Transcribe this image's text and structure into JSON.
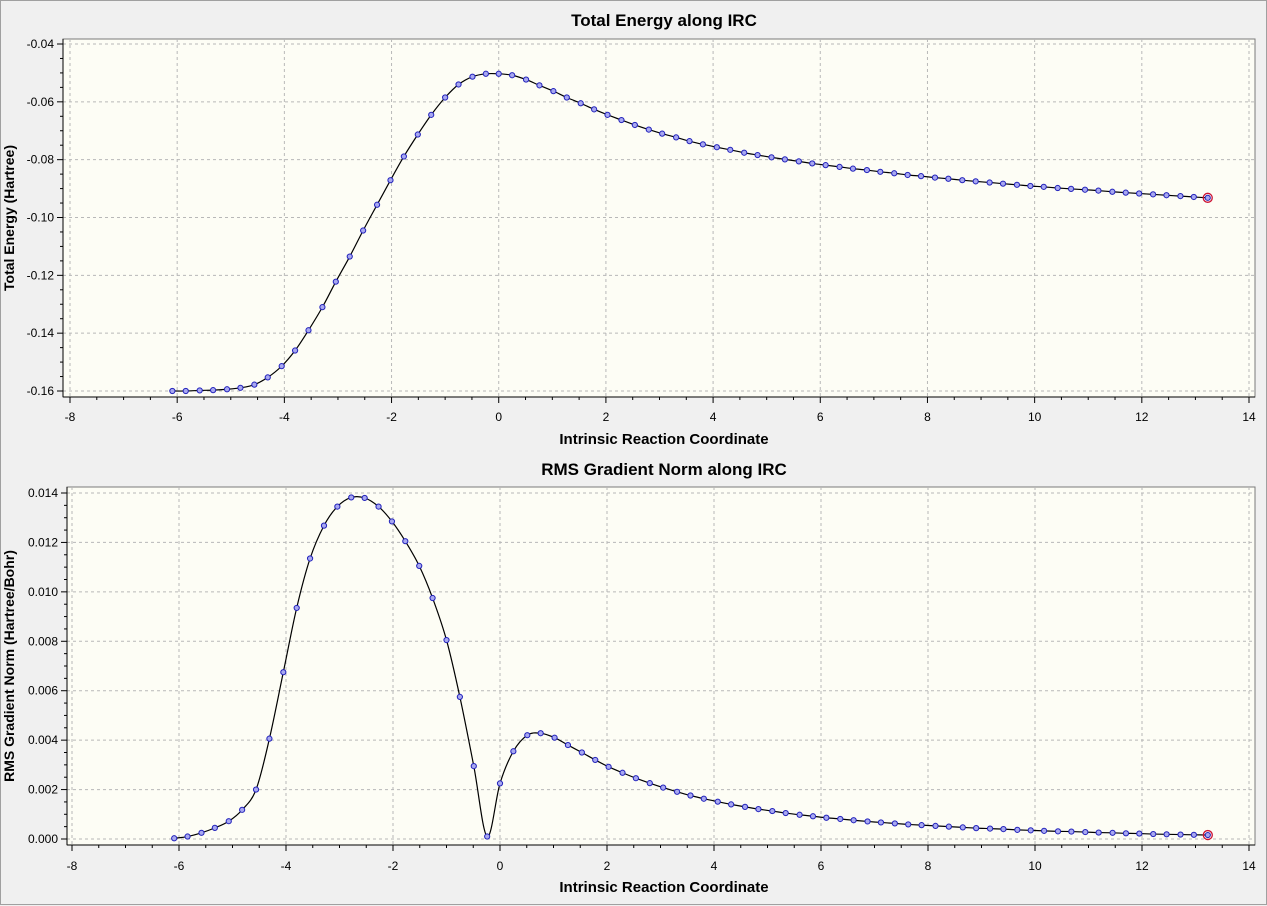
{
  "chart_data": [
    {
      "type": "line",
      "title": "Total Energy along IRC",
      "xlabel": "Intrinsic Reaction Coordinate",
      "ylabel": "Total Energy (Hartree)",
      "xlim": [
        -8,
        14
      ],
      "ylim": [
        -0.16,
        -0.04
      ],
      "xticks": [
        -8,
        -6,
        -4,
        -2,
        0,
        2,
        4,
        6,
        8,
        10,
        12,
        14
      ],
      "xtick_labels": [
        "-8",
        "-6",
        "-4",
        "-2",
        "0",
        "2",
        "4",
        "6",
        "8",
        "10",
        "12",
        "14"
      ],
      "yticks": [
        -0.04,
        -0.06,
        -0.08,
        -0.1,
        -0.12,
        -0.14,
        -0.16
      ],
      "ytick_labels": [
        "-0.04",
        "-0.06",
        "-0.08",
        "-0.10",
        "-0.12",
        "-0.14",
        "-0.16"
      ],
      "grid": true,
      "x": [
        -6.09,
        -5.84,
        -5.58,
        -5.33,
        -5.07,
        -4.82,
        -4.56,
        -4.31,
        -4.05,
        -3.8,
        -3.55,
        -3.29,
        -3.04,
        -2.78,
        -2.53,
        -2.27,
        -2.02,
        -1.77,
        -1.51,
        -1.26,
        -1.0,
        -0.75,
        -0.49,
        -0.24,
        0.0,
        0.25,
        0.51,
        0.76,
        1.02,
        1.27,
        1.53,
        1.78,
        2.03,
        2.29,
        2.54,
        2.8,
        3.05,
        3.31,
        3.56,
        3.81,
        4.07,
        4.32,
        4.58,
        4.83,
        5.09,
        5.34,
        5.6,
        5.85,
        6.1,
        6.36,
        6.61,
        6.87,
        7.12,
        7.38,
        7.63,
        7.88,
        8.14,
        8.39,
        8.65,
        8.9,
        9.16,
        9.41,
        9.67,
        9.92,
        10.17,
        10.43,
        10.68,
        10.94,
        11.19,
        11.45,
        11.7,
        11.95,
        12.21,
        12.46,
        12.72,
        12.97,
        13.23
      ],
      "y": [
        -0.16,
        -0.16,
        -0.1598,
        -0.1597,
        -0.1594,
        -0.1589,
        -0.1578,
        -0.1553,
        -0.1514,
        -0.146,
        -0.139,
        -0.131,
        -0.1222,
        -0.1135,
        -0.1045,
        -0.0956,
        -0.0871,
        -0.0789,
        -0.0713,
        -0.0645,
        -0.0585,
        -0.054,
        -0.0513,
        -0.0503,
        -0.0503,
        -0.0508,
        -0.0523,
        -0.0543,
        -0.0563,
        -0.0585,
        -0.0605,
        -0.0626,
        -0.0645,
        -0.0663,
        -0.068,
        -0.0696,
        -0.071,
        -0.0723,
        -0.0736,
        -0.0747,
        -0.0757,
        -0.0766,
        -0.0776,
        -0.0784,
        -0.0792,
        -0.0799,
        -0.0806,
        -0.0813,
        -0.0819,
        -0.0825,
        -0.0831,
        -0.0836,
        -0.0842,
        -0.0847,
        -0.0853,
        -0.0857,
        -0.0862,
        -0.0866,
        -0.0871,
        -0.0875,
        -0.0879,
        -0.0883,
        -0.0887,
        -0.0891,
        -0.0894,
        -0.0898,
        -0.0901,
        -0.0904,
        -0.0907,
        -0.0911,
        -0.0914,
        -0.0917,
        -0.092,
        -0.0923,
        -0.0926,
        -0.0929,
        -0.0932
      ],
      "series": [
        {
          "values_key": "y",
          "color": "#000000",
          "marker_color": "#2222bb"
        }
      ],
      "endpoint_marker_color": "#cc1133"
    },
    {
      "type": "line",
      "title": "RMS Gradient Norm along IRC",
      "xlabel": "Intrinsic Reaction Coordinate",
      "ylabel": "RMS Gradient Norm (Hartree/Bohr)",
      "xlim": [
        -8,
        14
      ],
      "ylim": [
        0.0,
        0.014
      ],
      "xticks": [
        -8,
        -6,
        -4,
        -2,
        0,
        2,
        4,
        6,
        8,
        10,
        12,
        14
      ],
      "xtick_labels": [
        "-8",
        "-6",
        "-4",
        "-2",
        "0",
        "2",
        "4",
        "6",
        "8",
        "10",
        "12",
        "14"
      ],
      "yticks": [
        0.0,
        0.002,
        0.004,
        0.006,
        0.008,
        0.01,
        0.012,
        0.014
      ],
      "ytick_labels": [
        "0.000",
        "0.002",
        "0.004",
        "0.006",
        "0.008",
        "0.010",
        "0.012",
        "0.014"
      ],
      "grid": true,
      "x": [
        -6.09,
        -5.84,
        -5.58,
        -5.33,
        -5.07,
        -4.82,
        -4.56,
        -4.31,
        -4.05,
        -3.8,
        -3.55,
        -3.29,
        -3.04,
        -2.78,
        -2.53,
        -2.27,
        -2.02,
        -1.77,
        -1.51,
        -1.26,
        -1.0,
        -0.75,
        -0.49,
        -0.24,
        0.0,
        0.25,
        0.51,
        0.76,
        1.02,
        1.27,
        1.53,
        1.78,
        2.03,
        2.29,
        2.54,
        2.8,
        3.05,
        3.31,
        3.56,
        3.81,
        4.07,
        4.32,
        4.58,
        4.83,
        5.09,
        5.34,
        5.6,
        5.85,
        6.1,
        6.36,
        6.61,
        6.87,
        7.12,
        7.38,
        7.63,
        7.88,
        8.14,
        8.39,
        8.65,
        8.9,
        9.16,
        9.41,
        9.67,
        9.92,
        10.17,
        10.43,
        10.68,
        10.94,
        11.19,
        11.45,
        11.7,
        11.95,
        12.21,
        12.46,
        12.72,
        12.97,
        13.23
      ],
      "y": [
        3e-05,
        0.0001,
        0.00025,
        0.00045,
        0.00072,
        0.00118,
        0.002,
        0.00406,
        0.00675,
        0.00935,
        0.01135,
        0.01268,
        0.01345,
        0.01382,
        0.0138,
        0.01345,
        0.01285,
        0.01205,
        0.01105,
        0.00975,
        0.00805,
        0.00575,
        0.00295,
        0.0001,
        0.00225,
        0.00355,
        0.0042,
        0.00428,
        0.0041,
        0.0038,
        0.0035,
        0.0032,
        0.00292,
        0.00268,
        0.00246,
        0.00226,
        0.00208,
        0.00191,
        0.00176,
        0.00163,
        0.00151,
        0.0014,
        0.0013,
        0.00121,
        0.00113,
        0.00105,
        0.00098,
        0.00092,
        0.00086,
        0.00081,
        0.00076,
        0.00071,
        0.00067,
        0.00063,
        0.00059,
        0.00056,
        0.00053,
        0.0005,
        0.00047,
        0.00044,
        0.00042,
        0.0004,
        0.00037,
        0.00035,
        0.00033,
        0.00031,
        0.0003,
        0.00028,
        0.00026,
        0.00025,
        0.00023,
        0.00022,
        0.0002,
        0.00019,
        0.00018,
        0.00017,
        0.00016
      ],
      "series": [
        {
          "values_key": "y",
          "color": "#000000",
          "marker_color": "#2222bb"
        }
      ],
      "endpoint_marker_color": "#cc1133"
    }
  ]
}
